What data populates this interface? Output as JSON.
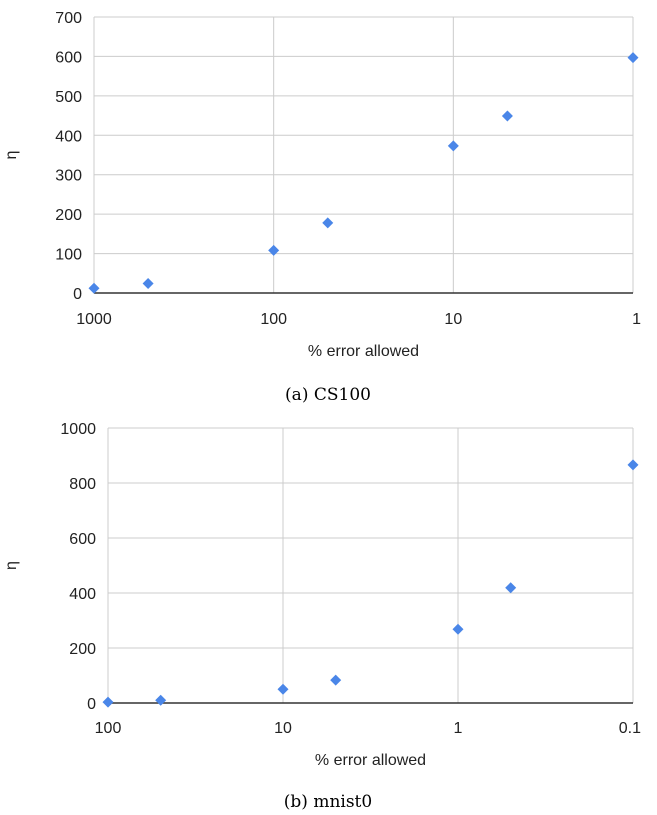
{
  "colors": {
    "marker": "#4a86e8",
    "grid": "#cccccc",
    "axis": "#333333"
  },
  "chart_data": [
    {
      "type": "scatter",
      "caption": "(a) CS100",
      "xlabel": "% error allowed",
      "ylabel": "η",
      "x_scale": "log-reversed",
      "xlim": [
        1000,
        1
      ],
      "ylim": [
        0,
        700
      ],
      "grid": true,
      "x_ticks": [
        "1000",
        "100",
        "10",
        "1"
      ],
      "y_ticks": [
        "0",
        "100",
        "200",
        "300",
        "400",
        "500",
        "600",
        "700"
      ],
      "marker": "diamond",
      "points": [
        {
          "x": 1000,
          "y": 12
        },
        {
          "x": 500,
          "y": 24
        },
        {
          "x": 100,
          "y": 108
        },
        {
          "x": 50,
          "y": 178
        },
        {
          "x": 10,
          "y": 373
        },
        {
          "x": 5,
          "y": 449
        },
        {
          "x": 1,
          "y": 597
        }
      ]
    },
    {
      "type": "scatter",
      "caption": "(b) mnist0",
      "xlabel": "% error allowed",
      "ylabel": "η",
      "x_scale": "log-reversed",
      "xlim": [
        100,
        0.1
      ],
      "ylim": [
        0,
        1000
      ],
      "grid": true,
      "x_ticks": [
        "100",
        "10",
        "1",
        "0.1"
      ],
      "y_ticks": [
        "0",
        "200",
        "400",
        "600",
        "800",
        "1000"
      ],
      "marker": "diamond",
      "points": [
        {
          "x": 100,
          "y": 3
        },
        {
          "x": 50,
          "y": 10
        },
        {
          "x": 10,
          "y": 50
        },
        {
          "x": 5,
          "y": 83
        },
        {
          "x": 1,
          "y": 268
        },
        {
          "x": 0.5,
          "y": 419
        },
        {
          "x": 0.1,
          "y": 866
        }
      ]
    }
  ]
}
